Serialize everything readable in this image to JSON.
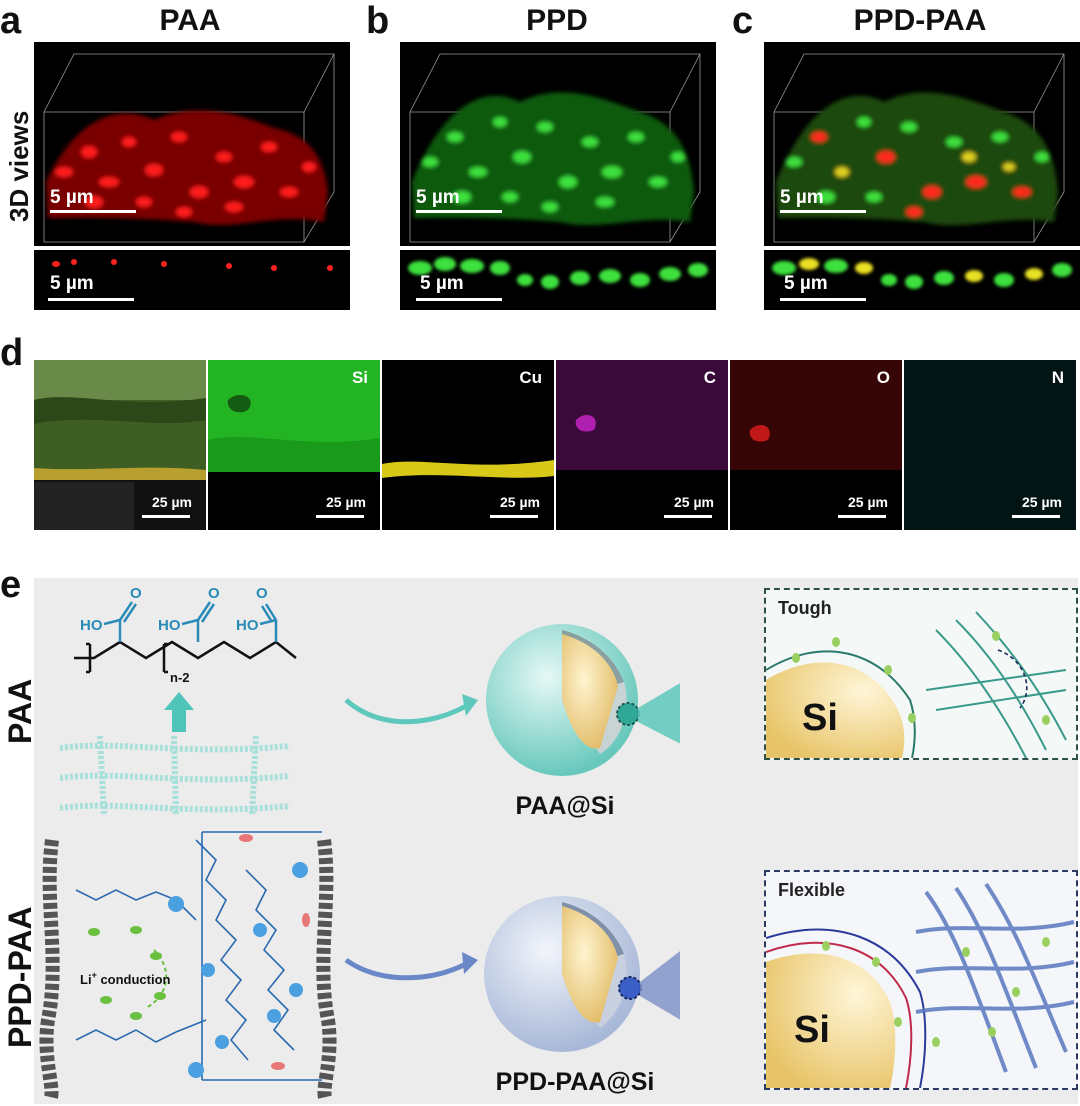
{
  "panel_letters": {
    "a": "a",
    "b": "b",
    "c": "c",
    "d": "d",
    "e": "e"
  },
  "top_panels": {
    "titles": [
      "PAA",
      "PPD",
      "PPD-PAA"
    ],
    "row_label": "3D views",
    "scale_text": "5 µm",
    "colors": {
      "paa": "#e01010",
      "ppd": "#22c022",
      "mix": "#c8c020"
    }
  },
  "eds": {
    "labels": [
      "",
      "Si",
      "Cu",
      "C",
      "O",
      "N"
    ],
    "scale_text": "25 µm",
    "colors": [
      "#4a7a2a",
      "#22b422",
      "#d8c818",
      "#b020b0",
      "#c01818",
      "#20a8b8"
    ]
  },
  "scheme": {
    "row_labels": [
      "PAA",
      "PPD-PAA"
    ],
    "paa_structure": {
      "ho": "HO",
      "o": "O",
      "subscript": "n-2"
    },
    "particle_labels": [
      "PAA@Si",
      "PPD-PAA@Si"
    ],
    "zoom_titles": [
      "Tough",
      "Flexible"
    ],
    "si_label": "Si",
    "li_text": "Li",
    "li_sup": "+",
    "li_rest": " conduction",
    "colors": {
      "teal": "#4fc4b8",
      "blue": "#5a78c0",
      "si": "#f2d88a",
      "shell_teal": "#8fd8d0",
      "shell_blue": "#c0cce4"
    }
  }
}
